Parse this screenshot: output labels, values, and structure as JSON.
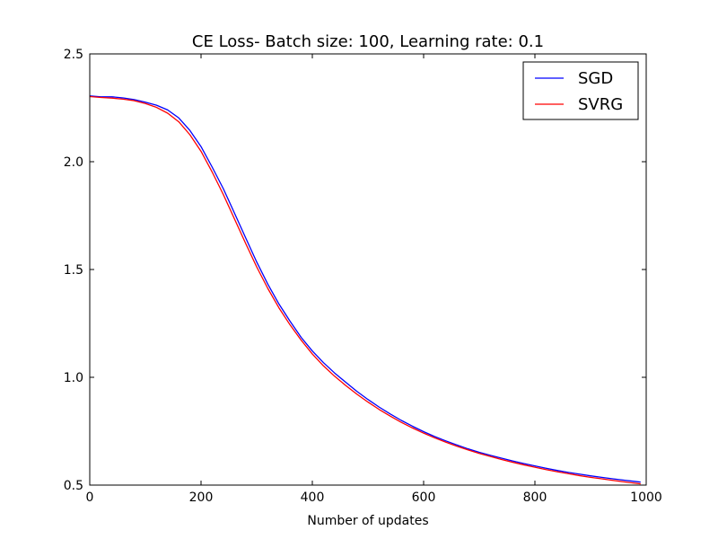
{
  "chart_data": {
    "type": "line",
    "title": "CE Loss- Batch size: 100, Learning rate: 0.1",
    "xlabel": "Number of updates",
    "ylabel": "",
    "xlim": [
      0,
      1000
    ],
    "ylim": [
      0.5,
      2.5
    ],
    "xticks": [
      0,
      200,
      400,
      600,
      800,
      1000
    ],
    "xtick_labels": [
      "0",
      "200",
      "400",
      "600",
      "800",
      "1000"
    ],
    "yticks": [
      0.5,
      1.0,
      1.5,
      2.0,
      2.5
    ],
    "ytick_labels": [
      "0.5",
      "1.0",
      "1.5",
      "2.0",
      "2.5"
    ],
    "grid": false,
    "legend_position": "top-right",
    "series": [
      {
        "name": "SGD",
        "color": "#0000ff",
        "x": [
          0,
          20,
          40,
          60,
          80,
          100,
          120,
          140,
          160,
          180,
          200,
          220,
          240,
          260,
          280,
          300,
          320,
          340,
          360,
          380,
          400,
          420,
          440,
          460,
          480,
          500,
          520,
          540,
          560,
          580,
          600,
          620,
          640,
          660,
          680,
          700,
          720,
          740,
          760,
          780,
          800,
          820,
          840,
          860,
          880,
          900,
          920,
          940,
          960,
          980,
          990
        ],
        "y": [
          2.305,
          2.301,
          2.301,
          2.296,
          2.288,
          2.276,
          2.262,
          2.24,
          2.203,
          2.145,
          2.07,
          1.975,
          1.875,
          1.762,
          1.648,
          1.535,
          1.432,
          1.34,
          1.26,
          1.185,
          1.122,
          1.068,
          1.02,
          0.977,
          0.935,
          0.897,
          0.862,
          0.83,
          0.8,
          0.773,
          0.748,
          0.725,
          0.705,
          0.686,
          0.668,
          0.652,
          0.638,
          0.625,
          0.612,
          0.6,
          0.589,
          0.578,
          0.568,
          0.559,
          0.551,
          0.543,
          0.536,
          0.529,
          0.523,
          0.517,
          0.514
        ]
      },
      {
        "name": "SVRG",
        "color": "#ff0000",
        "x": [
          0,
          20,
          40,
          60,
          80,
          100,
          120,
          140,
          160,
          180,
          200,
          220,
          240,
          260,
          280,
          300,
          320,
          340,
          360,
          380,
          400,
          420,
          440,
          460,
          480,
          500,
          520,
          540,
          560,
          580,
          600,
          620,
          640,
          660,
          680,
          700,
          720,
          740,
          760,
          780,
          800,
          820,
          840,
          860,
          880,
          900,
          920,
          940,
          960,
          980,
          990
        ],
        "y": [
          2.302,
          2.298,
          2.295,
          2.29,
          2.283,
          2.27,
          2.252,
          2.225,
          2.185,
          2.125,
          2.048,
          1.952,
          1.848,
          1.735,
          1.622,
          1.512,
          1.412,
          1.322,
          1.243,
          1.172,
          1.108,
          1.053,
          1.005,
          0.962,
          0.922,
          0.885,
          0.851,
          0.82,
          0.791,
          0.765,
          0.741,
          0.719,
          0.699,
          0.68,
          0.663,
          0.647,
          0.633,
          0.619,
          0.606,
          0.594,
          0.583,
          0.572,
          0.562,
          0.553,
          0.544,
          0.536,
          0.529,
          0.522,
          0.515,
          0.509,
          0.506
        ]
      }
    ]
  }
}
